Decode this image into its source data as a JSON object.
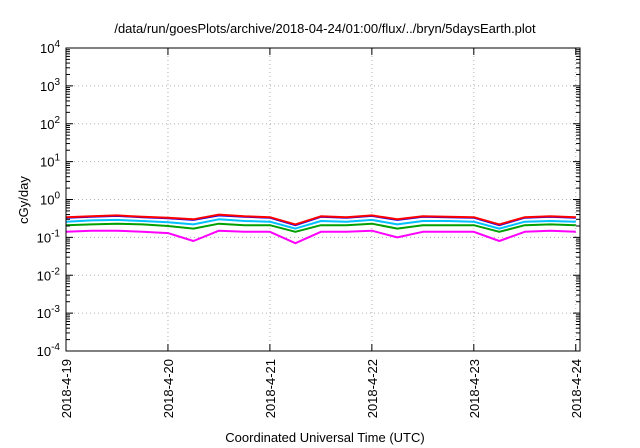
{
  "chart_data": {
    "type": "line",
    "title": "/data/run/goesPlots/archive/2018-04-24/01:00/flux/../bryn/5daysEarth.plot",
    "xlabel": "Coordinated Universal Time (UTC)",
    "ylabel": "cGy/day",
    "yscale": "log",
    "ylim": [
      0.0001,
      10000
    ],
    "xlim": [
      "2018-04-19T00:00",
      "2018-04-24T01:00"
    ],
    "grid": true,
    "legend": "none",
    "yticks": [
      {
        "value": 10000,
        "base": "10",
        "exp": "4"
      },
      {
        "value": 1000,
        "base": "10",
        "exp": "3"
      },
      {
        "value": 100,
        "base": "10",
        "exp": "2"
      },
      {
        "value": 10,
        "base": "10",
        "exp": "1"
      },
      {
        "value": 1,
        "base": "10",
        "exp": "0"
      },
      {
        "value": 0.1,
        "base": "10",
        "exp": "-1"
      },
      {
        "value": 0.01,
        "base": "10",
        "exp": "-2"
      },
      {
        "value": 0.001,
        "base": "10",
        "exp": "-3"
      },
      {
        "value": 0.0001,
        "base": "10",
        "exp": "-4"
      }
    ],
    "xticks": [
      {
        "value": "2018-04-19T00:00",
        "label": "2018-4-19"
      },
      {
        "value": "2018-04-20T00:00",
        "label": "2018-4-20"
      },
      {
        "value": "2018-04-21T00:00",
        "label": "2018-4-21"
      },
      {
        "value": "2018-04-22T00:00",
        "label": "2018-4-22"
      },
      {
        "value": "2018-04-23T00:00",
        "label": "2018-4-23"
      },
      {
        "value": "2018-04-24T00:00",
        "label": "2018-4-24"
      }
    ],
    "x": [
      "2018-04-19T00:00",
      "2018-04-19T06:00",
      "2018-04-19T12:00",
      "2018-04-19T18:00",
      "2018-04-20T00:00",
      "2018-04-20T06:00",
      "2018-04-20T12:00",
      "2018-04-20T18:00",
      "2018-04-21T00:00",
      "2018-04-21T06:00",
      "2018-04-21T12:00",
      "2018-04-21T18:00",
      "2018-04-22T00:00",
      "2018-04-22T06:00",
      "2018-04-22T12:00",
      "2018-04-22T18:00",
      "2018-04-23T00:00",
      "2018-04-23T06:00",
      "2018-04-23T12:00",
      "2018-04-23T18:00",
      "2018-04-24T00:00"
    ],
    "series": [
      {
        "color": "#ff0000",
        "values": [
          0.34,
          0.36,
          0.38,
          0.35,
          0.33,
          0.3,
          0.4,
          0.36,
          0.34,
          0.22,
          0.36,
          0.34,
          0.38,
          0.3,
          0.36,
          0.35,
          0.34,
          0.22,
          0.34,
          0.36,
          0.34
        ]
      },
      {
        "color": "#0000ff",
        "values": [
          0.33,
          0.35,
          0.37,
          0.34,
          0.32,
          0.29,
          0.38,
          0.35,
          0.33,
          0.21,
          0.35,
          0.33,
          0.37,
          0.29,
          0.35,
          0.34,
          0.33,
          0.21,
          0.33,
          0.35,
          0.33
        ]
      },
      {
        "color": "#00c0ff",
        "values": [
          0.26,
          0.28,
          0.29,
          0.27,
          0.25,
          0.22,
          0.3,
          0.27,
          0.26,
          0.17,
          0.27,
          0.26,
          0.29,
          0.22,
          0.27,
          0.27,
          0.26,
          0.17,
          0.26,
          0.27,
          0.26
        ]
      },
      {
        "color": "#00a000",
        "values": [
          0.21,
          0.22,
          0.23,
          0.22,
          0.2,
          0.17,
          0.23,
          0.21,
          0.21,
          0.14,
          0.21,
          0.21,
          0.23,
          0.17,
          0.21,
          0.21,
          0.21,
          0.14,
          0.21,
          0.22,
          0.21
        ]
      },
      {
        "color": "#ff00ff",
        "values": [
          0.14,
          0.15,
          0.15,
          0.14,
          0.13,
          0.08,
          0.15,
          0.14,
          0.14,
          0.07,
          0.14,
          0.14,
          0.15,
          0.1,
          0.14,
          0.14,
          0.14,
          0.08,
          0.14,
          0.15,
          0.14
        ]
      }
    ]
  }
}
